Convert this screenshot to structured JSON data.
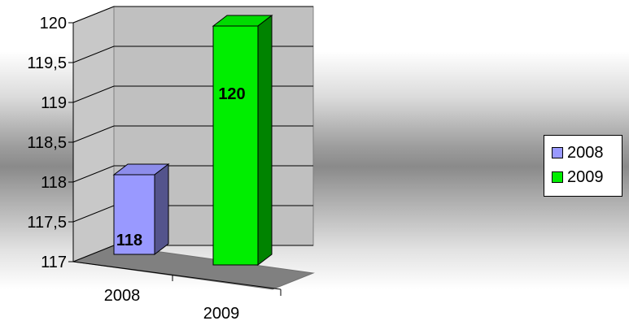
{
  "chart_data": {
    "type": "bar",
    "categories": [
      "2008",
      "2009"
    ],
    "series": [
      {
        "name": "2008",
        "values": [
          118,
          null
        ],
        "color": "#9999ff"
      },
      {
        "name": "2009",
        "values": [
          null,
          120
        ],
        "color": "#00ee00"
      }
    ],
    "data_labels": [
      "118",
      "120"
    ],
    "y_ticks": [
      "117",
      "117,5",
      "118",
      "118,5",
      "119",
      "119,5",
      "120"
    ],
    "ylim": [
      117,
      120
    ],
    "grid": true,
    "legend_position": "right",
    "three_d": true
  }
}
